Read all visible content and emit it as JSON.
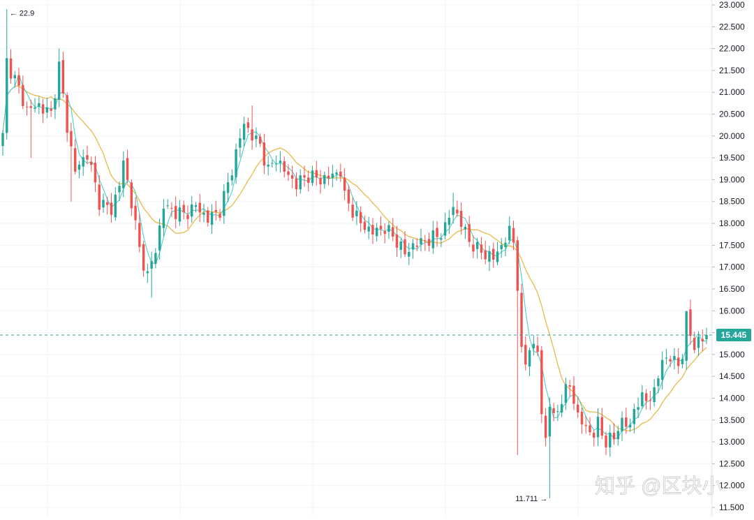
{
  "chart_data": {
    "type": "candlestick",
    "ylim": [
      11.5,
      23.0
    ],
    "y_ticks": [
      "11.500",
      "12.000",
      "12.500",
      "13.000",
      "13.500",
      "14.000",
      "14.500",
      "15.000",
      "15.500",
      "16.000",
      "16.500",
      "17.000",
      "17.500",
      "18.000",
      "18.500",
      "19.000",
      "19.500",
      "20.000",
      "20.500",
      "21.000",
      "21.500",
      "22.000",
      "22.500",
      "23.000"
    ],
    "last_price": 15.445,
    "last_price_label": "15.445",
    "high_marker": {
      "value": 22.9,
      "label": "← 22.9"
    },
    "low_marker": {
      "value": 11.711,
      "label": "11.711 →"
    },
    "grid": true,
    "colors": {
      "up": "#26a69a",
      "down": "#ef5350",
      "ma_fast": "#4dd0c4",
      "ma_slow": "#e9b949",
      "last_price": "#26a69a"
    },
    "close_path": [
      [
        0,
        20.0
      ],
      [
        1,
        21.7
      ],
      [
        3,
        21.3
      ],
      [
        6,
        20.6
      ],
      [
        9,
        20.7
      ],
      [
        12,
        20.5
      ],
      [
        14,
        21.6
      ],
      [
        16,
        20.2
      ],
      [
        18,
        19.2
      ],
      [
        21,
        19.6
      ],
      [
        24,
        18.5
      ],
      [
        27,
        18.3
      ],
      [
        29,
        18.9
      ],
      [
        30,
        19.4
      ],
      [
        32,
        18.5
      ],
      [
        34,
        17.4
      ],
      [
        36,
        16.8
      ],
      [
        38,
        17.4
      ],
      [
        40,
        18.4
      ],
      [
        42,
        18.3
      ],
      [
        45,
        18.2
      ],
      [
        48,
        18.4
      ],
      [
        51,
        18.1
      ],
      [
        54,
        18.3
      ],
      [
        56,
        18.9
      ],
      [
        58,
        19.6
      ],
      [
        60,
        20.3
      ],
      [
        62,
        20.0
      ],
      [
        64,
        19.8
      ],
      [
        66,
        19.2
      ],
      [
        68,
        19.5
      ],
      [
        70,
        19.2
      ],
      [
        73,
        18.9
      ],
      [
        76,
        19.1
      ],
      [
        79,
        19.0
      ],
      [
        82,
        19.1
      ],
      [
        84,
        19.2
      ],
      [
        85,
        18.6
      ],
      [
        87,
        18.3
      ],
      [
        89,
        18.0
      ],
      [
        92,
        17.8
      ],
      [
        95,
        17.9
      ],
      [
        98,
        17.6
      ],
      [
        100,
        17.3
      ],
      [
        102,
        17.5
      ],
      [
        105,
        17.6
      ],
      [
        108,
        17.7
      ],
      [
        110,
        17.9
      ],
      [
        112,
        18.4
      ],
      [
        114,
        18.0
      ],
      [
        116,
        17.6
      ],
      [
        118,
        17.4
      ],
      [
        120,
        17.3
      ],
      [
        122,
        17.2
      ],
      [
        124,
        17.5
      ],
      [
        126,
        17.8
      ],
      [
        127,
        17.6
      ],
      [
        128,
        16.6
      ],
      [
        129,
        15.0
      ],
      [
        130,
        14.8
      ],
      [
        131,
        15.2
      ],
      [
        133,
        15.1
      ],
      [
        134,
        13.6
      ],
      [
        135,
        13.1
      ],
      [
        136,
        13.9
      ],
      [
        137,
        13.5
      ],
      [
        139,
        14.0
      ],
      [
        141,
        14.3
      ],
      [
        143,
        13.6
      ],
      [
        145,
        13.3
      ],
      [
        147,
        13.2
      ],
      [
        148,
        13.4
      ],
      [
        150,
        13.0
      ],
      [
        152,
        13.1
      ],
      [
        154,
        13.5
      ],
      [
        156,
        13.3
      ],
      [
        157,
        13.8
      ],
      [
        158,
        13.9
      ],
      [
        160,
        14.0
      ],
      [
        162,
        14.1
      ],
      [
        163,
        14.5
      ],
      [
        164,
        14.9
      ],
      [
        166,
        14.9
      ],
      [
        168,
        14.8
      ],
      [
        169,
        15.0
      ],
      [
        170,
        15.8
      ],
      [
        171,
        15.5
      ],
      [
        172,
        15.2
      ],
      [
        174,
        15.35
      ],
      [
        175,
        15.445
      ]
    ],
    "spikes": [
      {
        "i": 1,
        "high": 22.9
      },
      {
        "i": 14,
        "high": 22.0
      },
      {
        "i": 7,
        "low": 19.5
      },
      {
        "i": 17,
        "low": 18.5
      },
      {
        "i": 37,
        "low": 16.3
      },
      {
        "i": 62,
        "high": 20.7
      },
      {
        "i": 128,
        "low": 12.7
      },
      {
        "i": 136,
        "low": 11.711
      },
      {
        "i": 112,
        "high": 18.7
      },
      {
        "i": 170,
        "high": 16.0
      }
    ]
  },
  "watermark": "知乎 @区块小"
}
